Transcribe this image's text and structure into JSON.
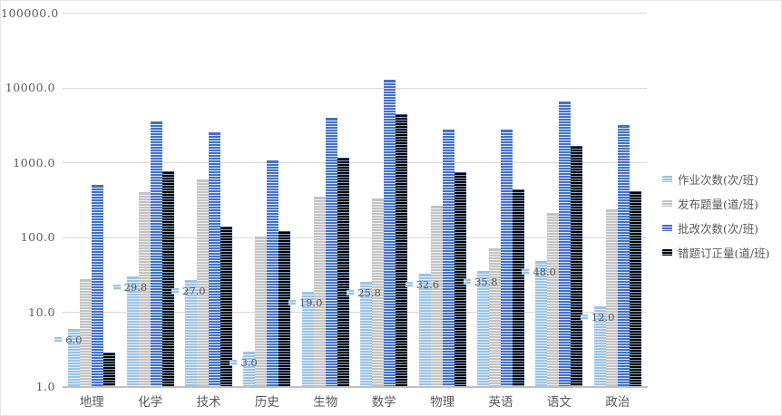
{
  "chart_data": {
    "type": "bar",
    "scale": "log",
    "title": "",
    "xlabel": "",
    "ylabel": "",
    "ylim": [
      1,
      100000
    ],
    "grid": true,
    "legend_position": "right",
    "y_ticks": [
      "100000.0",
      "10000.0",
      "1000.0",
      "100.0",
      "10.0",
      "1.0"
    ],
    "y_tick_values": [
      100000,
      10000,
      1000,
      100,
      10,
      1
    ],
    "categories": [
      "地理",
      "化学",
      "技术",
      "历史",
      "生物",
      "数学",
      "物理",
      "英语",
      "语文",
      "政治"
    ],
    "series": [
      {
        "name": "作业次数(次/班)",
        "color": "#9DC3E6",
        "stripe_color": "#E3EEF8",
        "values": [
          6.0,
          29.8,
          27.0,
          3.0,
          19.0,
          25.8,
          32.6,
          35.8,
          48.0,
          12.0
        ],
        "data_labels": [
          "6.0",
          "29.8",
          "27.0",
          "3.0",
          "19.0",
          "25.8",
          "32.6",
          "35.8",
          "48.0",
          "12.0"
        ]
      },
      {
        "name": "发布题量(道/班)",
        "color": "#C3C3C3",
        "stripe_color": "#EFEFEF",
        "values": [
          28,
          400,
          600,
          103,
          350,
          330,
          265,
          72,
          212,
          238
        ]
      },
      {
        "name": "批改次数(次/班)",
        "color": "#4472C4",
        "stripe_color": "#DCE6F4",
        "values": [
          500,
          3600,
          2550,
          1070,
          4000,
          12900,
          2770,
          2770,
          6600,
          3170
        ]
      },
      {
        "name": "错题订正量(道/班)",
        "color": "#000000",
        "stripe_color": "#8FA9C8",
        "cap_color": "#2F5597",
        "values": [
          2.9,
          770,
          140,
          121,
          1170,
          4470,
          745,
          438,
          1670,
          420
        ]
      }
    ]
  }
}
